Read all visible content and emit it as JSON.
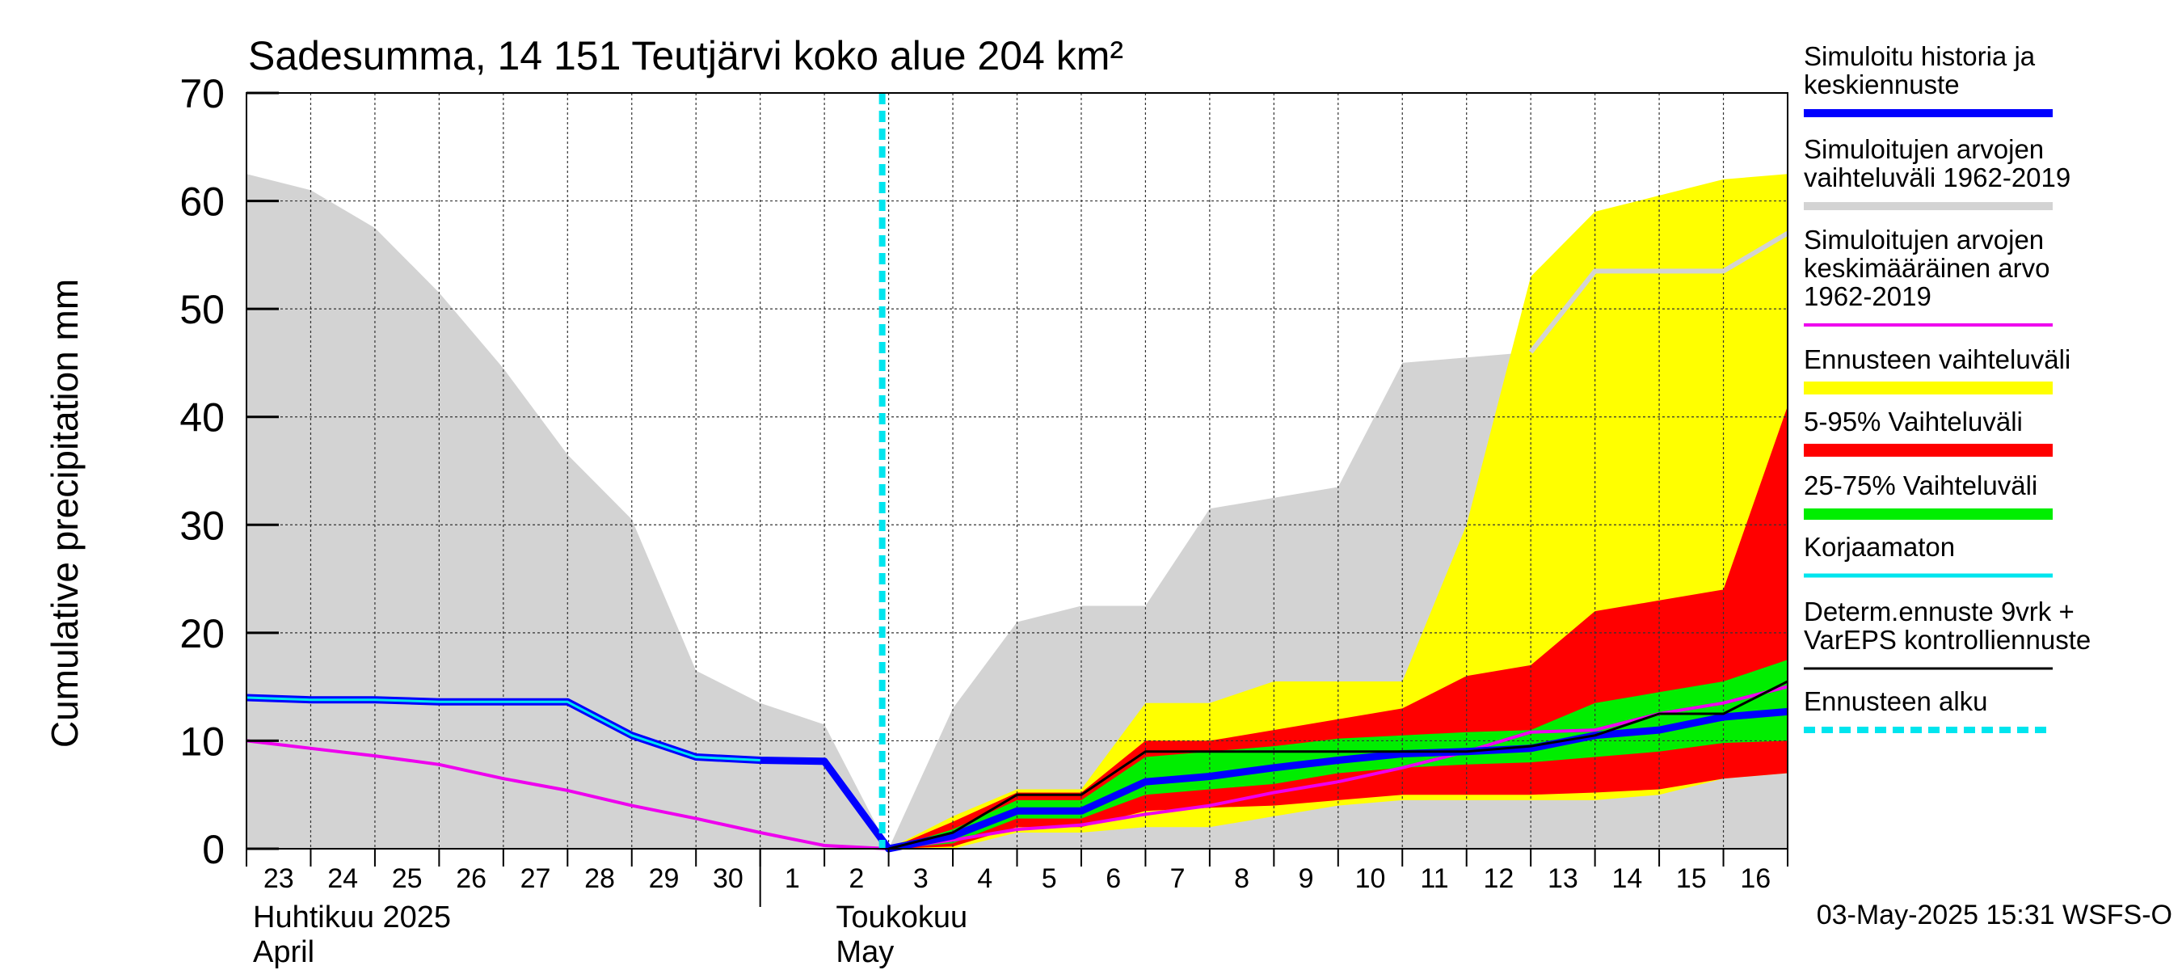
{
  "chart_data": {
    "type": "area",
    "title": "Sadesumma, 14 151 Teutjärvi koko alue 204 km²",
    "ylabel": "Cumulative precipitation   mm",
    "ylim": [
      0,
      70
    ],
    "yticks": [
      "0",
      "10",
      "20",
      "30",
      "40",
      "50",
      "60",
      "70"
    ],
    "x_days": [
      "23",
      "24",
      "25",
      "26",
      "27",
      "28",
      "29",
      "30",
      "1",
      "2",
      "3",
      "4",
      "5",
      "6",
      "7",
      "8",
      "9",
      "10",
      "11",
      "12",
      "13",
      "14",
      "15",
      "16"
    ],
    "x_start": "2025-04-23",
    "month_labels": [
      {
        "line1": "Huhtikuu  2025",
        "line2": "April"
      },
      {
        "line1": "Toukokuu",
        "line2": "May"
      }
    ],
    "grid": true,
    "forecast_start": "2025-05-03",
    "history_range": {
      "x": [
        "2025-04-23",
        "2025-04-24",
        "2025-04-25",
        "2025-04-26",
        "2025-04-27",
        "2025-04-28",
        "2025-04-29",
        "2025-04-30",
        "2025-05-01",
        "2025-05-02",
        "2025-05-03",
        "2025-05-04",
        "2025-05-05",
        "2025-05-06",
        "2025-05-07",
        "2025-05-08",
        "2025-05-09",
        "2025-05-10",
        "2025-05-11",
        "2025-05-12",
        "2025-05-13",
        "2025-05-14",
        "2025-05-15",
        "2025-05-16",
        "2025-05-17"
      ],
      "upper": [
        62.5,
        61,
        57.5,
        51.5,
        44.5,
        36.5,
        30.5,
        16.5,
        13.5,
        11.5,
        0,
        13,
        21,
        22.5,
        22.5,
        31.5,
        32.5,
        33.5,
        45,
        45.5,
        46,
        53.5,
        53.5,
        53.5,
        57
      ],
      "lower": [
        0,
        0,
        0,
        0,
        0,
        0,
        0,
        0,
        0,
        0,
        0,
        0,
        0,
        0,
        0,
        0,
        0,
        0,
        0,
        0,
        0,
        0,
        0,
        0,
        0
      ]
    },
    "series": [
      {
        "name": "Simuloitu historia ja keskiennuste",
        "color": "#0000ff",
        "x": [
          "2025-04-23",
          "2025-04-24",
          "2025-04-25",
          "2025-04-26",
          "2025-04-27",
          "2025-04-28",
          "2025-04-29",
          "2025-04-30",
          "2025-05-01",
          "2025-05-02",
          "2025-05-03",
          "2025-05-04",
          "2025-05-05",
          "2025-05-06",
          "2025-05-07",
          "2025-05-08",
          "2025-05-09",
          "2025-05-10",
          "2025-05-11",
          "2025-05-12",
          "2025-05-13",
          "2025-05-14",
          "2025-05-15",
          "2025-05-16",
          "2025-05-17"
        ],
        "values": [
          14,
          13.8,
          13.8,
          13.6,
          13.6,
          13.6,
          10.5,
          8.5,
          8.2,
          8.1,
          0,
          1.2,
          3.5,
          3.5,
          6.2,
          6.7,
          7.5,
          8.2,
          8.8,
          9,
          9.3,
          10.5,
          11,
          12.2,
          12.7
        ]
      },
      {
        "name": "Simuloitujen arvojen keskimääräinen arvo 1962-2019",
        "color": "#ee00ee",
        "x": [
          "2025-04-23",
          "2025-04-24",
          "2025-04-25",
          "2025-04-26",
          "2025-04-27",
          "2025-04-28",
          "2025-04-29",
          "2025-04-30",
          "2025-05-01",
          "2025-05-02",
          "2025-05-03",
          "2025-05-04",
          "2025-05-05",
          "2025-05-06",
          "2025-05-07",
          "2025-05-08",
          "2025-05-09",
          "2025-05-10",
          "2025-05-11",
          "2025-05-12",
          "2025-05-13",
          "2025-05-14",
          "2025-05-15",
          "2025-05-16",
          "2025-05-17"
        ],
        "values": [
          10,
          9.3,
          8.6,
          7.8,
          6.5,
          5.4,
          4,
          2.8,
          1.5,
          0.3,
          0,
          0.8,
          1.8,
          2.2,
          3.2,
          4,
          5.2,
          6.2,
          7.5,
          9,
          10.8,
          11,
          12.5,
          13.5,
          15
        ]
      },
      {
        "name": "Simuloitujen arvojen vaihteluväli 1962-2019",
        "color": "#d3d3d3",
        "x": [
          "2025-05-13",
          "2025-05-14",
          "2025-05-15",
          "2025-05-16",
          "2025-05-17"
        ],
        "values": [
          46,
          53.5,
          53.5,
          53.5,
          57
        ]
      },
      {
        "name": "Determ.ennuste 9vrk + VarEPS kontrolliennuste",
        "color": "#000000",
        "x": [
          "2025-05-03",
          "2025-05-04",
          "2025-05-05",
          "2025-05-06",
          "2025-05-07",
          "2025-05-08",
          "2025-05-09",
          "2025-05-10",
          "2025-05-11",
          "2025-05-12",
          "2025-05-13",
          "2025-05-14",
          "2025-05-15",
          "2025-05-16",
          "2025-05-17"
        ],
        "values": [
          0,
          1.5,
          5,
          5,
          9,
          9,
          9,
          9,
          9,
          9,
          9.5,
          10.5,
          12.5,
          12.5,
          15.5
        ]
      }
    ],
    "forecast_bands": {
      "x": [
        "2025-05-03",
        "2025-05-04",
        "2025-05-05",
        "2025-05-06",
        "2025-05-07",
        "2025-05-08",
        "2025-05-09",
        "2025-05-10",
        "2025-05-11",
        "2025-05-12",
        "2025-05-13",
        "2025-05-14",
        "2025-05-15",
        "2025-05-16",
        "2025-05-17"
      ],
      "range": {
        "name": "Ennusteen vaihteluväli",
        "color": "#ffff00",
        "upper": [
          0,
          3,
          5.5,
          5.5,
          13.5,
          13.5,
          15.5,
          15.5,
          15.5,
          30,
          53,
          59,
          60.5,
          62,
          62.5
        ],
        "lower": [
          0,
          0,
          1.5,
          1.5,
          2,
          2,
          3,
          4,
          4.5,
          4.5,
          4.5,
          4.5,
          5,
          6.5,
          7
        ]
      },
      "p5_95": {
        "name": "5-95% Vaihteluväli",
        "color": "#ff0000",
        "upper": [
          0,
          2.5,
          5.2,
          5.2,
          10,
          10,
          11,
          12,
          13,
          16,
          17,
          22,
          23,
          24,
          41
        ],
        "lower": [
          0,
          0.2,
          2,
          2,
          3.5,
          3.8,
          4,
          4.5,
          5,
          5,
          5,
          5.2,
          5.5,
          6.5,
          7
        ]
      },
      "p25_75": {
        "name": "25-75% Vaihteluväli",
        "color": "#00ee00",
        "upper": [
          0,
          1.8,
          4.5,
          4.5,
          8.5,
          9,
          9.5,
          10.2,
          10.5,
          10.8,
          11,
          13.5,
          14.5,
          15.5,
          17.5
        ],
        "lower": [
          0,
          0.5,
          2.8,
          2.8,
          5,
          5.5,
          6,
          7,
          7.5,
          7.8,
          8,
          8.5,
          9,
          9.8,
          10
        ]
      }
    },
    "legend": [
      {
        "label": "Simuloitu historia ja keskiennuste",
        "color": "#0000ff",
        "style": "solid"
      },
      {
        "label": "Simuloitujen arvojen vaihteluväli 1962-2019",
        "color": "#d3d3d3",
        "style": "solid"
      },
      {
        "label": "Simuloitujen arvojen keskimääräinen arvo   1962-2019",
        "color": "#ee00ee",
        "style": "solid"
      },
      {
        "label": "Ennusteen vaihteluväli",
        "color": "#ffff00",
        "style": "solid"
      },
      {
        "label": "5-95% Vaihteluväli",
        "color": "#ff0000",
        "style": "solid"
      },
      {
        "label": "25-75% Vaihteluväli",
        "color": "#00ee00",
        "style": "solid"
      },
      {
        "label": "Korjaamaton",
        "color": "#00e5ee",
        "style": "solid"
      },
      {
        "label": "Determ.ennuste 9vrk + VarEPS kontrolliennuste",
        "color": "#000000",
        "style": "solid"
      },
      {
        "label": "Ennusteen alku",
        "color": "#00e5ee",
        "style": "dashed"
      }
    ],
    "legend_position": "right",
    "footer": "03-May-2025 15:31 WSFS-O"
  }
}
